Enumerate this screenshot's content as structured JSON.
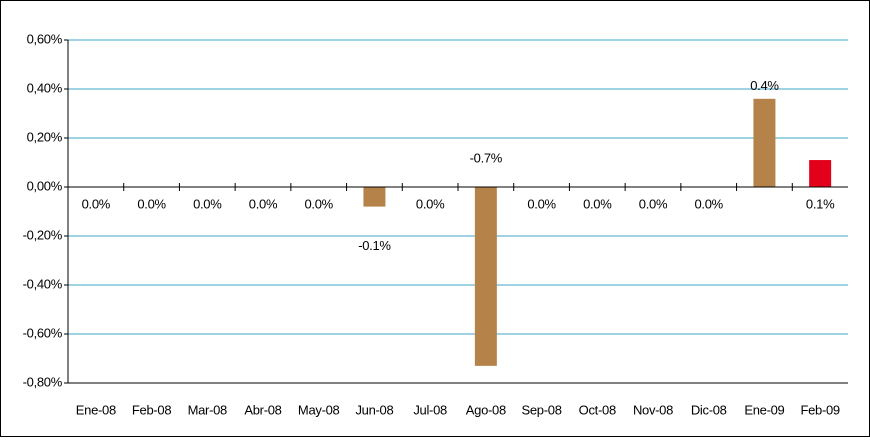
{
  "chart_data": {
    "type": "bar",
    "categories": [
      "Ene-08",
      "Feb-08",
      "Mar-08",
      "Abr-08",
      "May-08",
      "Jun-08",
      "Jul-08",
      "Ago-08",
      "Sep-08",
      "Oct-08",
      "Nov-08",
      "Dic-08",
      "Ene-09",
      "Feb-09"
    ],
    "values": [
      0,
      0,
      0,
      0,
      0,
      -0.08,
      0,
      -0.73,
      0,
      0,
      0,
      0,
      0.36,
      0.11
    ],
    "value_labels": [
      "0.0%",
      "0.0%",
      "0.0%",
      "0.0%",
      "0.0%",
      "-0.1%",
      "0.0%",
      "-0.7%",
      "0.0%",
      "0.0%",
      "0.0%",
      "0.0%",
      "0.4%",
      "0.1%"
    ],
    "colors": [
      "#b5834a",
      "#b5834a",
      "#b5834a",
      "#b5834a",
      "#b5834a",
      "#b5834a",
      "#b5834a",
      "#b5834a",
      "#b5834a",
      "#b5834a",
      "#b5834a",
      "#b5834a",
      "#b5834a",
      "#e3001b"
    ],
    "ylim": [
      -0.8,
      0.6
    ],
    "yticks": [
      {
        "value": -0.8,
        "label": "-0,80%"
      },
      {
        "value": -0.6,
        "label": "-0,60%"
      },
      {
        "value": -0.4,
        "label": "-0,40%"
      },
      {
        "value": -0.2,
        "label": "-0,20%"
      },
      {
        "value": 0,
        "label": "0,00%"
      },
      {
        "value": 0.2,
        "label": "0,20%"
      },
      {
        "value": 0.4,
        "label": "0,40%"
      },
      {
        "value": 0.6,
        "label": "0,60%"
      }
    ],
    "grid": true
  }
}
